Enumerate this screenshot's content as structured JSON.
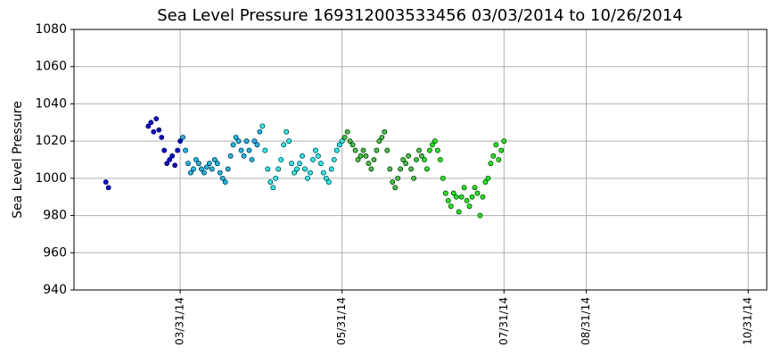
{
  "chart_data": {
    "type": "scatter",
    "title": "Sea Level Pressure 169312003533456  03/03/2014 to 10/26/2014",
    "ylabel": "Sea Level Pressure",
    "xlim": [
      "02/19/14",
      "11/07/14"
    ],
    "xticks": [
      "03/31/14",
      "05/31/14",
      "07/31/14",
      "08/31/14",
      "10/31/14"
    ],
    "ylim": [
      940,
      1080
    ],
    "yticks": [
      940,
      960,
      980,
      1000,
      1020,
      1040,
      1060,
      1080
    ],
    "grid": true,
    "series": [
      {
        "color": "#0000ff",
        "x": [
          "03/03/14",
          "03/04/14",
          "03/19/14",
          "03/20/14",
          "03/21/14",
          "03/22/14",
          "03/23/14",
          "03/24/14",
          "03/25/14",
          "03/26/14",
          "03/27/14",
          "03/28/14",
          "03/29/14",
          "03/30/14",
          "03/31/14"
        ],
        "values": [
          998,
          995,
          1028,
          1030,
          1025,
          1032,
          1026,
          1022,
          1015,
          1008,
          1010,
          1012,
          1007,
          1015,
          1020
        ]
      },
      {
        "color": "#00bfff",
        "x": [
          "04/01/14",
          "04/02/14",
          "04/03/14",
          "04/04/14",
          "04/05/14",
          "04/06/14",
          "04/07/14",
          "04/08/14",
          "04/09/14",
          "04/10/14",
          "04/11/14",
          "04/12/14",
          "04/13/14",
          "04/14/14",
          "04/15/14",
          "04/16/14",
          "04/17/14",
          "04/18/14",
          "04/19/14",
          "04/20/14",
          "04/21/14",
          "04/22/14",
          "04/23/14",
          "04/24/14",
          "04/25/14",
          "04/26/14",
          "04/27/14",
          "04/28/14",
          "04/29/14",
          "04/30/14"
        ],
        "values": [
          1022,
          1015,
          1008,
          1003,
          1005,
          1010,
          1008,
          1005,
          1003,
          1006,
          1008,
          1005,
          1010,
          1008,
          1003,
          1000,
          998,
          1005,
          1012,
          1018,
          1022,
          1020,
          1015,
          1012,
          1020,
          1015,
          1010,
          1020,
          1018,
          1025
        ]
      },
      {
        "color": "#00ffff",
        "x": [
          "05/01/14",
          "05/02/14",
          "05/03/14",
          "05/04/14",
          "05/05/14",
          "05/06/14",
          "05/07/14",
          "05/08/14",
          "05/09/14",
          "05/10/14",
          "05/11/14",
          "05/12/14",
          "05/13/14",
          "05/14/14",
          "05/15/14",
          "05/16/14",
          "05/17/14",
          "05/18/14",
          "05/19/14",
          "05/20/14",
          "05/21/14",
          "05/22/14",
          "05/23/14",
          "05/24/14",
          "05/25/14",
          "05/26/14",
          "05/27/14",
          "05/28/14",
          "05/29/14",
          "05/30/14",
          "05/31/14"
        ],
        "values": [
          1028,
          1015,
          1005,
          998,
          995,
          1000,
          1005,
          1010,
          1018,
          1025,
          1020,
          1008,
          1003,
          1005,
          1008,
          1012,
          1005,
          1000,
          1003,
          1010,
          1015,
          1012,
          1008,
          1003,
          1000,
          998,
          1005,
          1010,
          1015,
          1018,
          1020
        ]
      },
      {
        "color": "#32cd32",
        "x": [
          "06/01/14",
          "06/02/14",
          "06/03/14",
          "06/04/14",
          "06/05/14",
          "06/06/14",
          "06/07/14",
          "06/08/14",
          "06/09/14",
          "06/10/14",
          "06/11/14",
          "06/12/14",
          "06/13/14",
          "06/14/14",
          "06/15/14",
          "06/16/14",
          "06/17/14",
          "06/18/14",
          "06/19/14",
          "06/20/14",
          "06/21/14",
          "06/22/14",
          "06/23/14",
          "06/24/14",
          "06/25/14",
          "06/26/14",
          "06/27/14",
          "06/28/14",
          "06/29/14",
          "06/30/14"
        ],
        "values": [
          1022,
          1025,
          1020,
          1018,
          1015,
          1010,
          1012,
          1015,
          1012,
          1008,
          1005,
          1010,
          1015,
          1020,
          1022,
          1025,
          1015,
          1005,
          998,
          995,
          1000,
          1005,
          1010,
          1008,
          1012,
          1005,
          1000,
          1010,
          1015,
          1012
        ]
      },
      {
        "color": "#00ff00",
        "x": [
          "07/01/14",
          "07/02/14",
          "07/03/14",
          "07/04/14",
          "07/05/14",
          "07/06/14",
          "07/07/14",
          "07/08/14",
          "07/09/14",
          "07/10/14",
          "07/11/14",
          "07/12/14",
          "07/13/14",
          "07/14/14",
          "07/15/14",
          "07/16/14",
          "07/17/14",
          "07/18/14",
          "07/19/14",
          "07/20/14",
          "07/21/14",
          "07/22/14",
          "07/23/14",
          "07/24/14",
          "07/25/14",
          "07/26/14",
          "07/27/14",
          "07/28/14",
          "07/29/14",
          "07/30/14",
          "07/31/14"
        ],
        "values": [
          1010,
          1005,
          1015,
          1018,
          1020,
          1015,
          1010,
          1000,
          992,
          988,
          985,
          992,
          990,
          982,
          990,
          995,
          988,
          985,
          990,
          995,
          992,
          980,
          990,
          998,
          1000,
          1008,
          1012,
          1018,
          1010,
          1015,
          1020
        ]
      }
    ]
  }
}
